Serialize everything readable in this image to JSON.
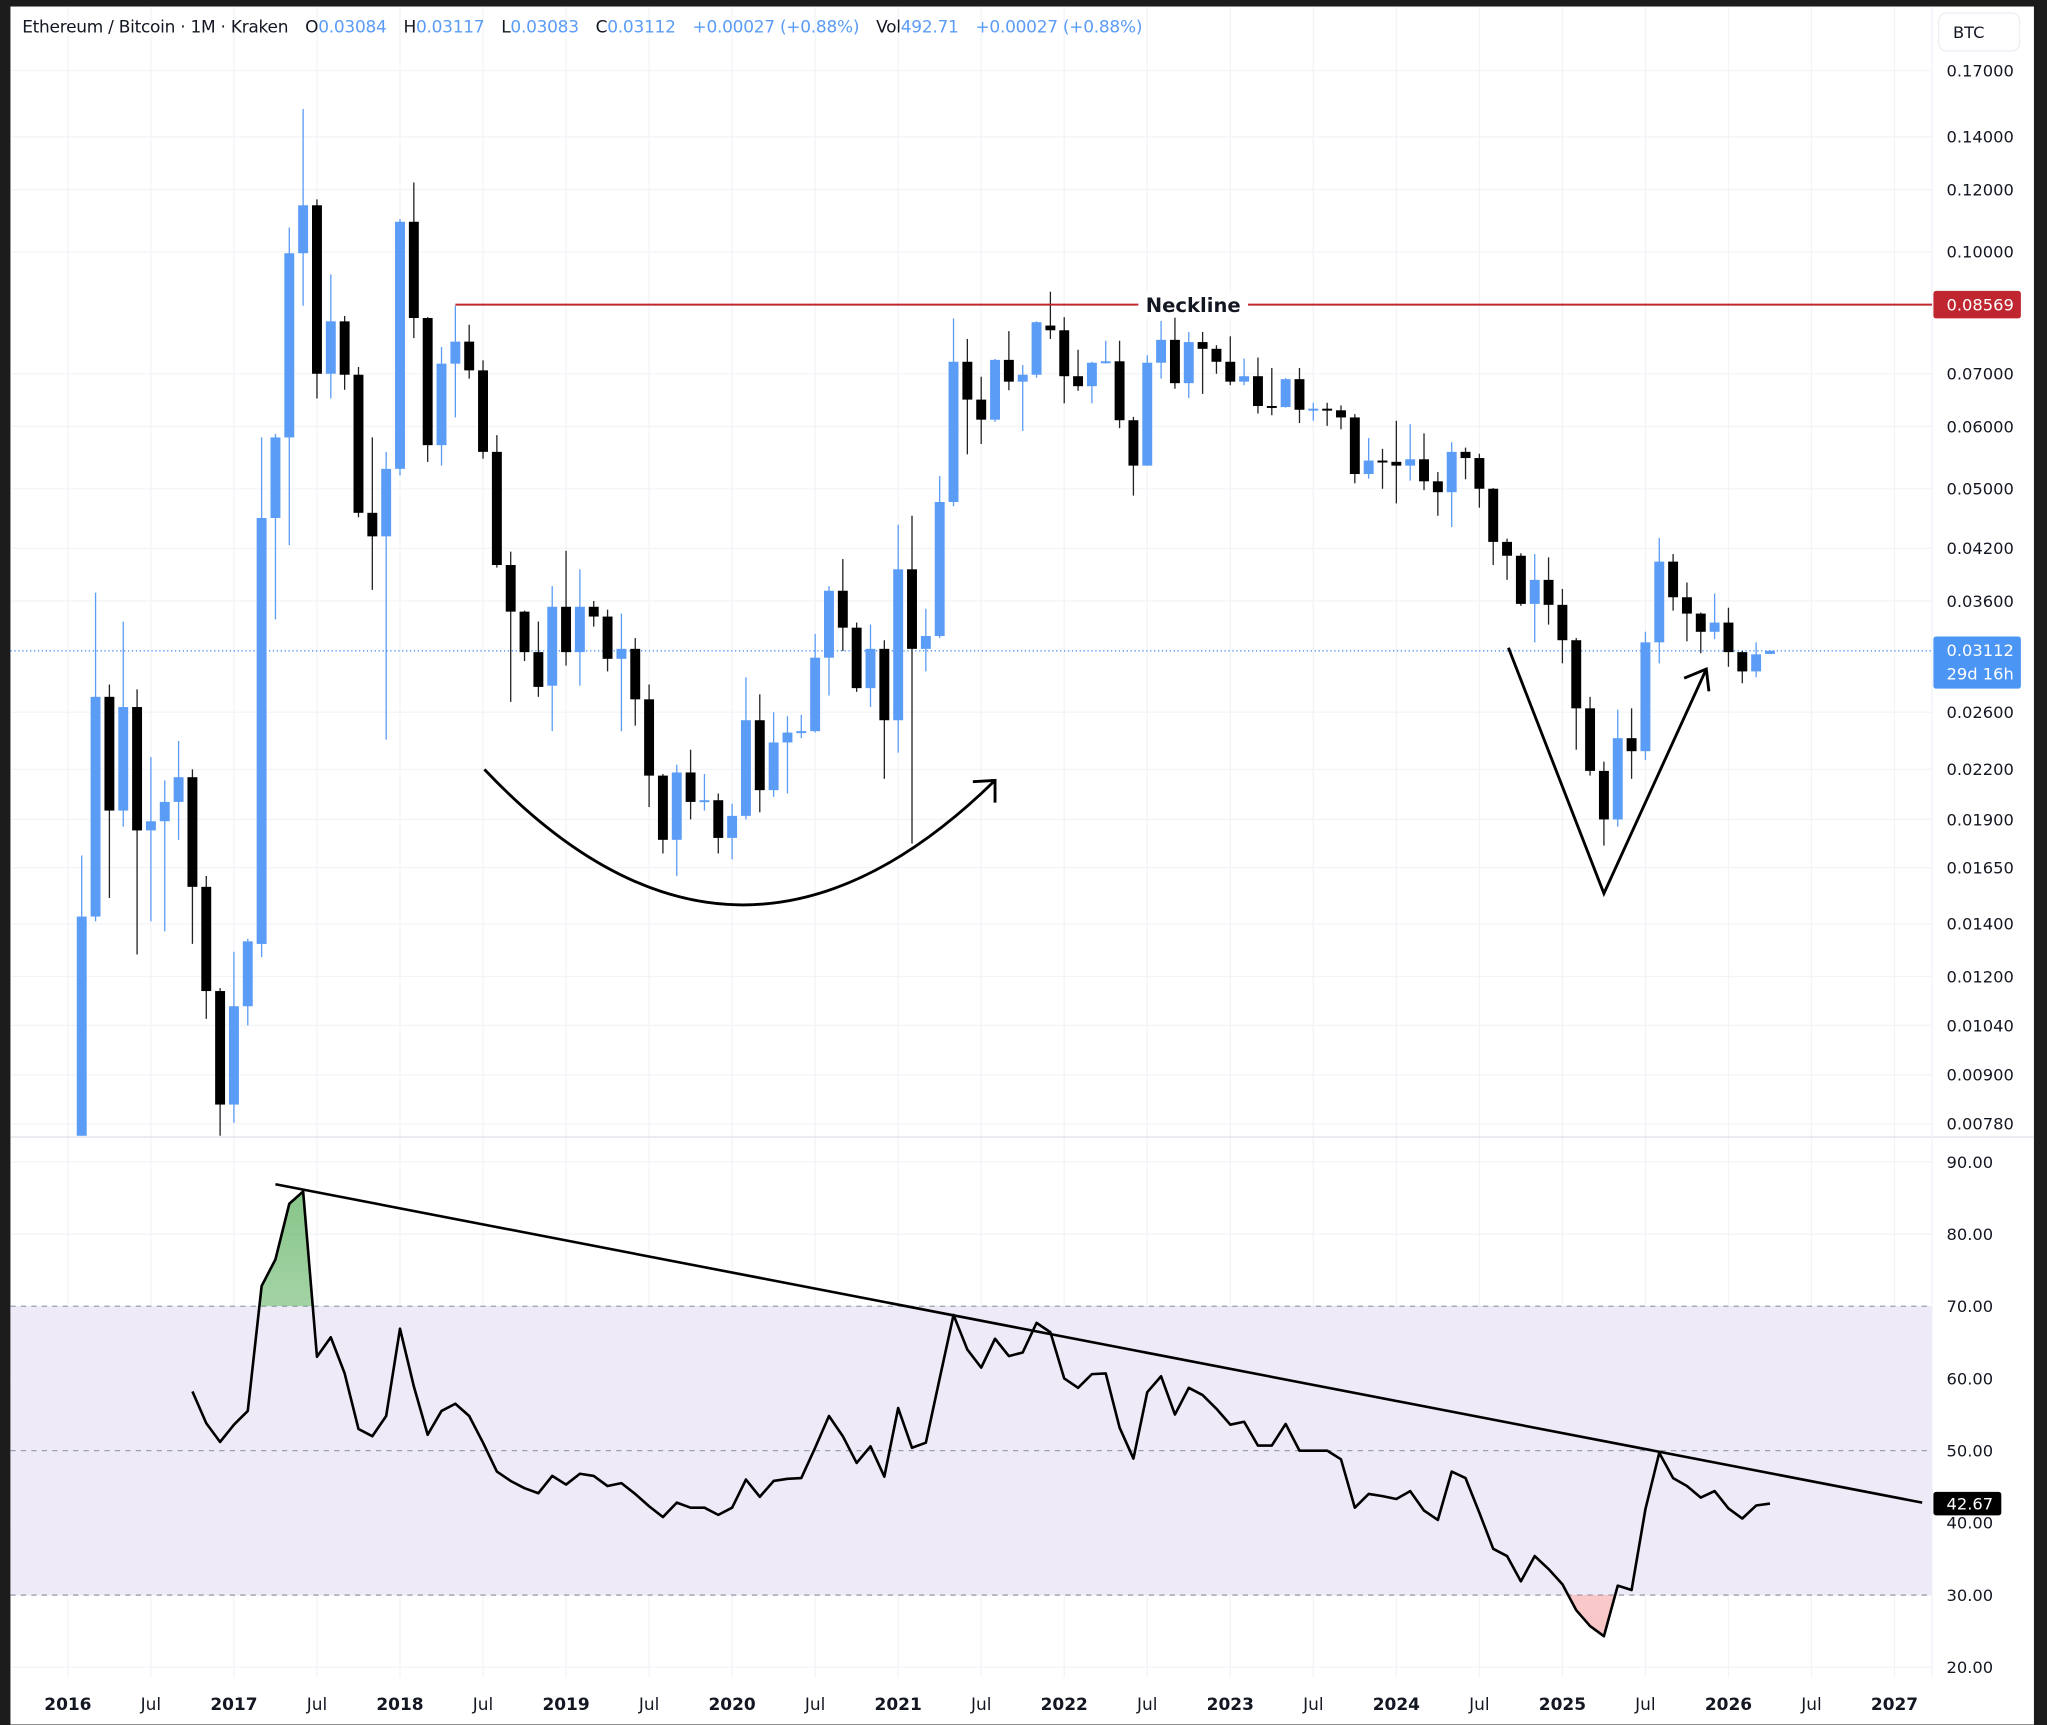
{
  "header": {
    "symbol": "Ethereum / Bitcoin · 1M · Kraken",
    "o_label": "O",
    "o": "0.03084",
    "h_label": "H",
    "h": "0.03117",
    "l_label": "L",
    "l": "0.03083",
    "c_label": "C",
    "c": "0.03112",
    "change": "+0.00027 (+0.88%)",
    "vol_label": "Vol",
    "vol": "492.71",
    "vol_change": "+0.00027 (+0.88%)"
  },
  "price_axis": {
    "currency_button": "BTC",
    "ticks": [
      "0.17000",
      "0.14000",
      "0.12000",
      "0.10000",
      "0.07000",
      "0.06000",
      "0.05000",
      "0.04200",
      "0.03600",
      "0.02600",
      "0.02200",
      "0.01900",
      "0.01650",
      "0.01400",
      "0.01200",
      "0.01040",
      "0.00900",
      "0.00780"
    ],
    "neckline_tag": "0.08569",
    "last_price_tag": "0.03112",
    "countdown": "29d 16h"
  },
  "rsi_axis": {
    "ticks": [
      "90.00",
      "80.00",
      "70.00",
      "60.00",
      "50.00",
      "40.00",
      "30.00",
      "20.00"
    ],
    "last_value_tag": "42.67"
  },
  "time_axis": {
    "labels": [
      "2016",
      "Jul",
      "2017",
      "Jul",
      "2018",
      "Jul",
      "2019",
      "Jul",
      "2020",
      "Jul",
      "2021",
      "Jul",
      "2022",
      "Jul",
      "2023",
      "Jul",
      "2024",
      "Jul",
      "2025",
      "Jul",
      "2026",
      "Jul",
      "2027"
    ]
  },
  "colors": {
    "up": "#5b9cf6",
    "down": "#000000",
    "neckline": "#c0262f",
    "last_price": "#4b95f5",
    "rsi_band": "#eeeaf8",
    "overbought_fill": "#7cc47f",
    "oversold_fill": "#f7c6c6"
  },
  "chart_data": {
    "type": "candlestick",
    "title": "Ethereum / Bitcoin · 1M · Kraken",
    "y_scale": "log",
    "ylim": [
      0.0078,
      0.17
    ],
    "time_origin": "2016-01",
    "candles": {
      "start": "2016-02",
      "interval": "1M",
      "fields": [
        "open",
        "high",
        "low",
        "close"
      ],
      "ohlc": [
        [
          0.00744,
          0.0171,
          0.0074,
          0.0143
        ],
        [
          0.0143,
          0.0369,
          0.0141,
          0.0272
        ],
        [
          0.0272,
          0.0282,
          0.0151,
          0.0195
        ],
        [
          0.0195,
          0.0339,
          0.0186,
          0.0264
        ],
        [
          0.0264,
          0.0278,
          0.0128,
          0.0184
        ],
        [
          0.0184,
          0.0228,
          0.0141,
          0.0189
        ],
        [
          0.0189,
          0.0213,
          0.0137,
          0.02
        ],
        [
          0.02,
          0.0239,
          0.0179,
          0.0215
        ],
        [
          0.0215,
          0.022,
          0.0132,
          0.0156
        ],
        [
          0.0156,
          0.0161,
          0.0106,
          0.0115
        ],
        [
          0.0115,
          0.0116,
          0.00751,
          0.00825
        ],
        [
          0.00825,
          0.0129,
          0.00782,
          0.011
        ],
        [
          0.011,
          0.0134,
          0.0104,
          0.0133
        ],
        [
          0.0132,
          0.0581,
          0.0127,
          0.0459
        ],
        [
          0.0459,
          0.0587,
          0.0341,
          0.0581
        ],
        [
          0.0581,
          0.1074,
          0.0424,
          0.0996
        ],
        [
          0.0996,
          0.1519,
          0.0854,
          0.1146
        ],
        [
          0.1146,
          0.1166,
          0.0651,
          0.07
        ],
        [
          0.07,
          0.0936,
          0.0651,
          0.0816
        ],
        [
          0.0816,
          0.0829,
          0.0668,
          0.0698
        ],
        [
          0.0698,
          0.0714,
          0.046,
          0.0466
        ],
        [
          0.0466,
          0.0581,
          0.0372,
          0.0435
        ],
        [
          0.0435,
          0.0557,
          0.024,
          0.053
        ],
        [
          0.053,
          0.1101,
          0.052,
          0.1092
        ],
        [
          0.1092,
          0.1225,
          0.0777,
          0.0824
        ],
        [
          0.0824,
          0.0826,
          0.0541,
          0.0568
        ],
        [
          0.0568,
          0.0757,
          0.0535,
          0.0721
        ],
        [
          0.0721,
          0.0854,
          0.0616,
          0.0769
        ],
        [
          0.0769,
          0.0808,
          0.069,
          0.0707
        ],
        [
          0.0707,
          0.0728,
          0.0546,
          0.0557
        ],
        [
          0.0557,
          0.0585,
          0.0397,
          0.04
        ],
        [
          0.04,
          0.0416,
          0.0268,
          0.0349
        ],
        [
          0.0349,
          0.035,
          0.0302,
          0.031
        ],
        [
          0.031,
          0.0339,
          0.0272,
          0.028
        ],
        [
          0.0281,
          0.0376,
          0.0246,
          0.0354
        ],
        [
          0.0354,
          0.0417,
          0.0298,
          0.031
        ],
        [
          0.031,
          0.0395,
          0.0281,
          0.0354
        ],
        [
          0.0354,
          0.036,
          0.0334,
          0.0344
        ],
        [
          0.0344,
          0.0351,
          0.0293,
          0.0304
        ],
        [
          0.0304,
          0.0347,
          0.0246,
          0.0313
        ],
        [
          0.0313,
          0.0323,
          0.025,
          0.027
        ],
        [
          0.027,
          0.0282,
          0.0197,
          0.0216
        ],
        [
          0.0216,
          0.0217,
          0.0172,
          0.0179
        ],
        [
          0.0179,
          0.0223,
          0.0161,
          0.0218
        ],
        [
          0.0218,
          0.0233,
          0.019,
          0.02
        ],
        [
          0.02,
          0.0217,
          0.0195,
          0.0201
        ],
        [
          0.0201,
          0.0205,
          0.0172,
          0.018
        ],
        [
          0.018,
          0.0199,
          0.0169,
          0.0192
        ],
        [
          0.0192,
          0.0288,
          0.019,
          0.0254
        ],
        [
          0.0254,
          0.0274,
          0.0194,
          0.0207
        ],
        [
          0.0207,
          0.026,
          0.0203,
          0.0238
        ],
        [
          0.0238,
          0.0257,
          0.0205,
          0.0245
        ],
        [
          0.0245,
          0.0258,
          0.0241,
          0.0246
        ],
        [
          0.0246,
          0.0327,
          0.0245,
          0.0305
        ],
        [
          0.0305,
          0.0376,
          0.0273,
          0.0371
        ],
        [
          0.0371,
          0.0407,
          0.0311,
          0.0333
        ],
        [
          0.0333,
          0.0338,
          0.0276,
          0.0279
        ],
        [
          0.0279,
          0.0336,
          0.0264,
          0.0313
        ],
        [
          0.0313,
          0.0321,
          0.0214,
          0.0254
        ],
        [
          0.0254,
          0.045,
          0.0231,
          0.0395
        ],
        [
          0.0395,
          0.0462,
          0.0177,
          0.0313
        ],
        [
          0.0313,
          0.0352,
          0.0293,
          0.0325
        ],
        [
          0.0325,
          0.0519,
          0.0323,
          0.0481
        ],
        [
          0.0481,
          0.0823,
          0.0475,
          0.0725
        ],
        [
          0.0725,
          0.0775,
          0.0553,
          0.0649
        ],
        [
          0.0649,
          0.0694,
          0.057,
          0.0612
        ],
        [
          0.0612,
          0.0731,
          0.0608,
          0.0729
        ],
        [
          0.0729,
          0.0793,
          0.0667,
          0.0684
        ],
        [
          0.0684,
          0.0718,
          0.0592,
          0.0698
        ],
        [
          0.0698,
          0.0816,
          0.0692,
          0.0814
        ],
        [
          0.0806,
          0.089,
          0.0775,
          0.0795
        ],
        [
          0.0795,
          0.0826,
          0.0642,
          0.0695
        ],
        [
          0.0695,
          0.0751,
          0.0666,
          0.0675
        ],
        [
          0.0675,
          0.0725,
          0.0642,
          0.0723
        ],
        [
          0.0723,
          0.0771,
          0.0721,
          0.0726
        ],
        [
          0.0726,
          0.0771,
          0.0597,
          0.0611
        ],
        [
          0.0611,
          0.0617,
          0.049,
          0.0535
        ],
        [
          0.0535,
          0.0739,
          0.0535,
          0.0723
        ],
        [
          0.0723,
          0.0817,
          0.069,
          0.0773
        ],
        [
          0.0773,
          0.0858,
          0.067,
          0.0681
        ],
        [
          0.0681,
          0.0791,
          0.0652,
          0.0768
        ],
        [
          0.0768,
          0.0791,
          0.066,
          0.0753
        ],
        [
          0.0753,
          0.0761,
          0.07,
          0.0725
        ],
        [
          0.0725,
          0.0781,
          0.0677,
          0.0684
        ],
        [
          0.0684,
          0.0732,
          0.0677,
          0.0695
        ],
        [
          0.0695,
          0.0734,
          0.0623,
          0.0637
        ],
        [
          0.0637,
          0.0712,
          0.062,
          0.0635
        ],
        [
          0.0635,
          0.0691,
          0.0634,
          0.0689
        ],
        [
          0.0689,
          0.0712,
          0.0606,
          0.063
        ],
        [
          0.063,
          0.0643,
          0.061,
          0.0632
        ],
        [
          0.0632,
          0.0643,
          0.0601,
          0.0629
        ],
        [
          0.0629,
          0.0638,
          0.0595,
          0.0616
        ],
        [
          0.0616,
          0.0622,
          0.0508,
          0.0522
        ],
        [
          0.0522,
          0.058,
          0.0515,
          0.0543
        ],
        [
          0.0543,
          0.0562,
          0.05,
          0.0541
        ],
        [
          0.0541,
          0.061,
          0.0479,
          0.0535
        ],
        [
          0.0535,
          0.0604,
          0.0512,
          0.0545
        ],
        [
          0.0545,
          0.0588,
          0.0498,
          0.0511
        ],
        [
          0.0511,
          0.0525,
          0.0462,
          0.0495
        ],
        [
          0.0495,
          0.0573,
          0.0447,
          0.0557
        ],
        [
          0.0557,
          0.0564,
          0.0514,
          0.0547
        ],
        [
          0.0547,
          0.0554,
          0.0473,
          0.05
        ],
        [
          0.05,
          0.0501,
          0.04,
          0.0428
        ],
        [
          0.0428,
          0.0432,
          0.0383,
          0.0411
        ],
        [
          0.0411,
          0.0414,
          0.0355,
          0.0357
        ],
        [
          0.0357,
          0.0413,
          0.0319,
          0.0383
        ],
        [
          0.0383,
          0.0409,
          0.0336,
          0.0356
        ],
        [
          0.0356,
          0.0373,
          0.03,
          0.0321
        ],
        [
          0.0321,
          0.0323,
          0.0233,
          0.0263
        ],
        [
          0.0263,
          0.0272,
          0.0216,
          0.0219
        ],
        [
          0.0219,
          0.0225,
          0.0176,
          0.019
        ],
        [
          0.019,
          0.0262,
          0.0186,
          0.0241
        ],
        [
          0.0241,
          0.0263,
          0.0214,
          0.0232
        ],
        [
          0.0232,
          0.0329,
          0.0226,
          0.0319
        ],
        [
          0.0319,
          0.0433,
          0.03,
          0.0404
        ],
        [
          0.0404,
          0.0413,
          0.035,
          0.0364
        ],
        [
          0.0364,
          0.038,
          0.032,
          0.0347
        ],
        [
          0.0347,
          0.0348,
          0.0309,
          0.0329
        ],
        [
          0.0329,
          0.0368,
          0.0322,
          0.0338
        ],
        [
          0.0338,
          0.0353,
          0.0297,
          0.031
        ],
        [
          0.031,
          0.0311,
          0.0283,
          0.0293
        ],
        [
          0.0293,
          0.0319,
          0.0288,
          0.0308
        ],
        [
          0.03084,
          0.03117,
          0.03083,
          0.03112
        ]
      ]
    },
    "last_price": 0.03112,
    "rsi": {
      "ylim": [
        20,
        90
      ],
      "levels": [
        70,
        50,
        30
      ],
      "start": "2016-10",
      "values": [
        58.2,
        53.8,
        51.2,
        53.6,
        55.5,
        72.8,
        76.5,
        84.2,
        85.9,
        63.0,
        65.7,
        60.7,
        53.0,
        52.0,
        54.8,
        66.9,
        58.9,
        52.2,
        55.5,
        56.5,
        54.8,
        51.1,
        47.1,
        45.8,
        44.8,
        44.1,
        46.5,
        45.3,
        46.8,
        46.5,
        45.1,
        45.5,
        44.0,
        42.3,
        40.8,
        42.8,
        42.1,
        42.1,
        41.1,
        42.1,
        46.0,
        43.6,
        45.8,
        46.1,
        46.2,
        50.4,
        54.8,
        52.0,
        48.3,
        50.6,
        46.4,
        55.9,
        50.4,
        51.1,
        60.0,
        68.8,
        64.0,
        61.5,
        65.5,
        63.1,
        63.6,
        67.7,
        66.4,
        60.0,
        58.7,
        60.6,
        60.7,
        53.2,
        48.9,
        58.1,
        60.3,
        55.0,
        58.7,
        57.7,
        55.8,
        53.6,
        54.0,
        50.7,
        50.7,
        53.7,
        50.0,
        50.0,
        50.0,
        48.8,
        42.1,
        44.0,
        43.7,
        43.3,
        44.4,
        41.7,
        40.4,
        47.1,
        46.2,
        41.4,
        36.4,
        35.4,
        31.9,
        35.4,
        33.6,
        31.5,
        27.9,
        25.7,
        24.3,
        31.3,
        30.7,
        41.9,
        49.7,
        46.2,
        45.1,
        43.5,
        44.4,
        42.0,
        40.6,
        42.4,
        42.67
      ]
    },
    "annotations": {
      "neckline": {
        "label": "Neckline",
        "price": 0.08569,
        "from_t": 28
      },
      "cup_arc": [
        {
          "t": 30.1,
          "p": 0.022
        },
        {
          "t": 48.4,
          "p": 0.0148
        },
        {
          "t": 67.0,
          "p": 0.0213
        }
      ],
      "v_pattern": [
        {
          "t": 104.1,
          "p": 0.0314
        },
        {
          "t": 111.0,
          "p": 0.0153
        },
        {
          "t": 118.4,
          "p": 0.0295
        }
      ],
      "rsi_trendline": [
        {
          "t": 15,
          "v": 86.9
        },
        {
          "t": 134,
          "v": 42.8
        }
      ]
    }
  }
}
